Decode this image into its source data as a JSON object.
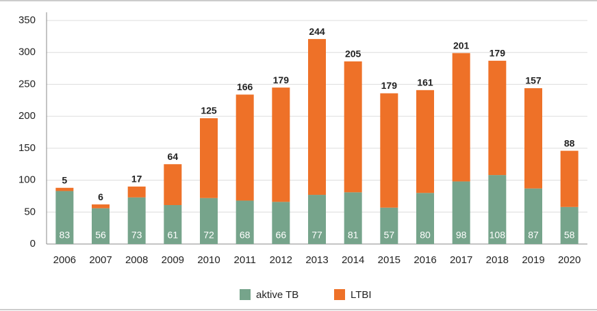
{
  "chart_data": {
    "type": "stacked_bar",
    "categories": [
      "2006",
      "2007",
      "2008",
      "2009",
      "2010",
      "2011",
      "2012",
      "2013",
      "2014",
      "2015",
      "2016",
      "2017",
      "2018",
      "2019",
      "2020"
    ],
    "series": [
      {
        "name": "aktive TB",
        "color": "#76a48b",
        "values": [
          83,
          56,
          73,
          61,
          72,
          68,
          66,
          77,
          81,
          57,
          80,
          98,
          108,
          87,
          58
        ]
      },
      {
        "name": "LTBI",
        "color": "#ee7128",
        "values": [
          5,
          6,
          17,
          64,
          125,
          166,
          179,
          244,
          205,
          179,
          161,
          201,
          179,
          157,
          88
        ]
      }
    ],
    "ylim": [
      0,
      350
    ],
    "yticks": [
      0,
      50,
      100,
      150,
      200,
      250,
      300,
      350
    ],
    "grid": true,
    "legend": "bottom"
  }
}
